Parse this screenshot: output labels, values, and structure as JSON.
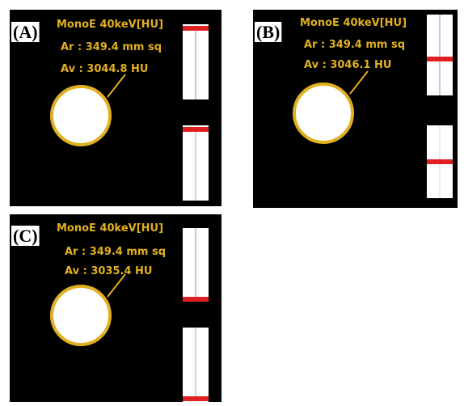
{
  "panels": [
    {
      "label": "(A)",
      "title": "MonoE 40keV[HU]",
      "area": "Ar : 349.4 mm sq",
      "mean": "Av : 3044.8 HU"
    },
    {
      "label": "(B)",
      "title": "MonoE 40keV[HU]",
      "area": "Ar : 349.4 mm sq",
      "mean": "Av : 3046.1 HU"
    },
    {
      "label": "(C)",
      "title": "MonoE 40keV[HU]",
      "area": "Ar : 349.4 mm sq",
      "mean": "Av : 3035.4 HU"
    }
  ]
}
